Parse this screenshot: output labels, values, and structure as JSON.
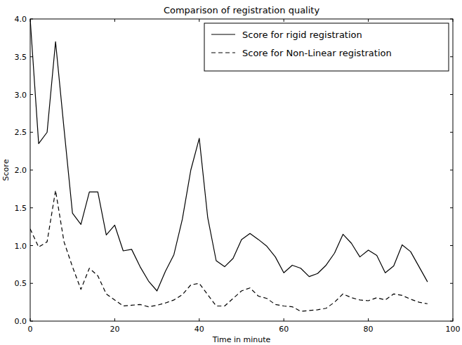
{
  "chart_data": {
    "type": "line",
    "title": "Comparison of registration quality",
    "x_label": "Time in minute",
    "y_label": "Score",
    "x": [
      0,
      2,
      4,
      6,
      8,
      10,
      12,
      14,
      16,
      18,
      20,
      22,
      24,
      26,
      28,
      30,
      32,
      34,
      36,
      38,
      40,
      42,
      44,
      46,
      48,
      50,
      52,
      54,
      56,
      58,
      60,
      62,
      64,
      66,
      68,
      70,
      72,
      74,
      76,
      78,
      80,
      82,
      84,
      86,
      88,
      90,
      92,
      94
    ],
    "series": [
      {
        "name": "Score for rigid registration",
        "color": "#000000",
        "line_style": "solid",
        "values": [
          4.0,
          2.35,
          2.5,
          3.7,
          2.55,
          1.43,
          1.28,
          1.71,
          1.71,
          1.14,
          1.27,
          0.93,
          0.95,
          0.72,
          0.53,
          0.4,
          0.66,
          0.88,
          1.35,
          2.0,
          2.42,
          1.37,
          0.8,
          0.72,
          0.83,
          1.08,
          1.16,
          1.08,
          0.99,
          0.85,
          0.64,
          0.74,
          0.7,
          0.59,
          0.63,
          0.74,
          0.9,
          1.15,
          1.03,
          0.85,
          0.94,
          0.87,
          0.64,
          0.73,
          1.01,
          0.92,
          0.72,
          0.52
        ]
      },
      {
        "name": "Score for Non-Linear registration",
        "color": "#000000",
        "line_style": "dashed",
        "values": [
          1.22,
          0.98,
          1.05,
          1.73,
          1.05,
          0.72,
          0.42,
          0.7,
          0.6,
          0.36,
          0.28,
          0.2,
          0.21,
          0.22,
          0.19,
          0.21,
          0.24,
          0.28,
          0.35,
          0.48,
          0.5,
          0.35,
          0.2,
          0.2,
          0.3,
          0.4,
          0.44,
          0.33,
          0.3,
          0.22,
          0.2,
          0.19,
          0.13,
          0.14,
          0.15,
          0.17,
          0.25,
          0.36,
          0.31,
          0.28,
          0.27,
          0.31,
          0.28,
          0.36,
          0.34,
          0.29,
          0.25,
          0.23
        ]
      }
    ],
    "xlim": [
      0,
      100
    ],
    "ylim": [
      0,
      4.0
    ],
    "xticks": [
      0,
      20,
      40,
      60,
      80,
      100
    ],
    "yticks": [
      {
        "value": 0,
        "label": "0.0"
      },
      0.5,
      {
        "value": 1,
        "label": "1.0"
      },
      1.5,
      {
        "value": 2,
        "label": "2.0"
      },
      2.5,
      {
        "value": 3,
        "label": "3.0"
      },
      3.5,
      {
        "value": 4,
        "label": "4.0"
      }
    ],
    "grid": false,
    "legend": "upper right"
  }
}
